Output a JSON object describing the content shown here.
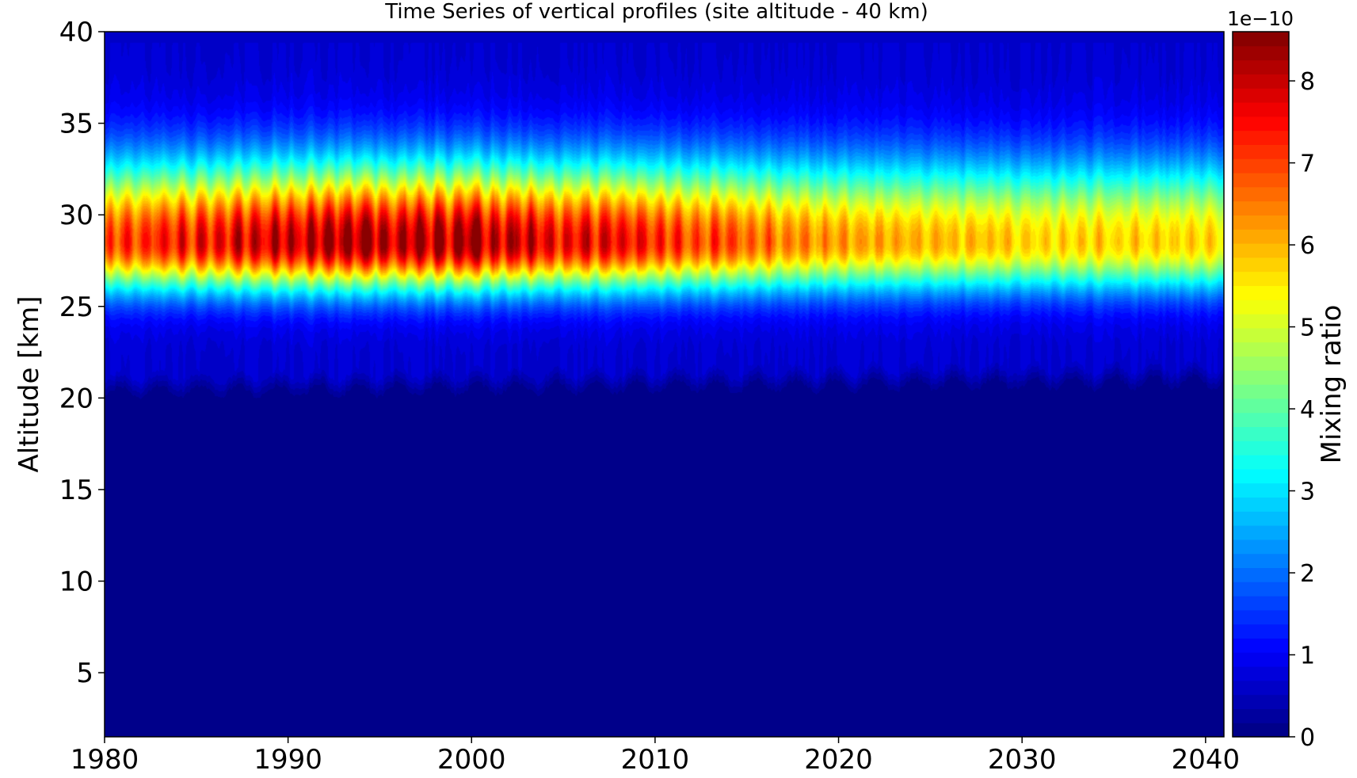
{
  "chart_data": {
    "type": "heatmap",
    "title": "Time Series of vertical profiles (site altitude - 40 km)",
    "xlabel": "",
    "ylabel": "Altitude [km]",
    "xlim": [
      1980,
      2041
    ],
    "ylim": [
      1.5,
      40
    ],
    "x_ticks": [
      "1980",
      "1990",
      "2000",
      "2010",
      "2020",
      "2030",
      "2040"
    ],
    "y_ticks": [
      "5",
      "10",
      "15",
      "20",
      "25",
      "30",
      "35",
      "40"
    ],
    "colorbar": {
      "label": "Mixing ratio",
      "offset_text": "1e−10",
      "range": [
        0,
        8.6
      ],
      "ticks": [
        "0",
        "1",
        "2",
        "3",
        "4",
        "5",
        "6",
        "7",
        "8"
      ],
      "colormap": "jet"
    },
    "field_description": {
      "background_below_km": 20,
      "peak_altitude_km": 28.5,
      "peak_year": 1996.5,
      "max_value": 8.5
    }
  }
}
